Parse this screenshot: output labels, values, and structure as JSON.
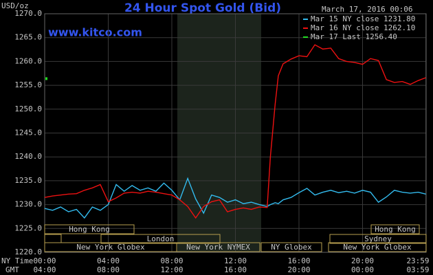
{
  "chart_data": {
    "type": "line",
    "title": "24 Hour Spot Gold (Bid)",
    "watermark": "www.kitco.com",
    "timestamp": "March 17, 2016 00:06",
    "y_label": "USD/oz",
    "x_row_labels": [
      "NY Time",
      "GMT"
    ],
    "x": [
      0,
      0.5,
      1,
      1.5,
      2,
      2.5,
      3,
      3.5,
      4,
      4.5,
      5,
      5.5,
      6,
      6.5,
      7,
      7.5,
      8,
      8.5,
      9,
      9.5,
      10,
      10.5,
      11,
      11.5,
      12,
      12.5,
      13,
      13.5,
      14,
      14.2,
      14.5,
      14.7,
      15,
      15.5,
      16,
      16.5,
      17,
      17.5,
      18,
      18.5,
      19,
      19.5,
      20,
      20.5,
      21,
      21.5,
      22,
      22.5,
      23,
      23.5,
      23.98
    ],
    "series": [
      {
        "name": "Mar 15 NY close 1231.80",
        "color": "#33bbee",
        "values": [
          1229.2,
          1228.8,
          1229.5,
          1228.5,
          1229,
          1227.2,
          1229.5,
          1228.8,
          1230,
          1234.2,
          1232.8,
          1234,
          1233,
          1233.5,
          1232.8,
          1234.5,
          1233,
          1231,
          1235.5,
          1231.2,
          1228.2,
          1232,
          1231.5,
          1230.5,
          1231,
          1230.2,
          1230.5,
          1230,
          1229.6,
          1230,
          1230.4,
          1230.2,
          1231,
          1231.5,
          1232.5,
          1233.4,
          1232,
          1232.6,
          1233,
          1232.5,
          1232.8,
          1232.4,
          1233,
          1232.6,
          1230.5,
          1231.6,
          1233,
          1232.6,
          1232.4,
          1232.6,
          1232.2
        ]
      },
      {
        "name": "Mar 16 NY close 1262.10",
        "color": "#ee1111",
        "values": [
          1231.5,
          1231.8,
          1232,
          1232.2,
          1232.3,
          1233,
          1233.5,
          1234.2,
          1230.6,
          1231.4,
          1232.4,
          1232.6,
          1232.4,
          1232.8,
          1232.6,
          1232.3,
          1232,
          1231,
          1229.6,
          1227.2,
          1229.6,
          1230.6,
          1231,
          1228.5,
          1229,
          1229.3,
          1229,
          1229.5,
          1229.4,
          1240,
          1251,
          1257,
          1259.5,
          1260.5,
          1261.2,
          1261,
          1263.5,
          1262.6,
          1262.8,
          1260.6,
          1260,
          1259.8,
          1259.4,
          1260.6,
          1260.2,
          1256.2,
          1255.6,
          1255.8,
          1255.2,
          1256,
          1256.6
        ]
      },
      {
        "name": "Mar 17 Last 1256.40",
        "color": "#22dd22",
        "x": [
          0
        ],
        "values": [
          1256.4
        ]
      }
    ],
    "xlim": [
      0,
      24
    ],
    "xticks": [
      {
        "value": 0,
        "label": "00:00"
      },
      {
        "value": 4,
        "label": "04:00"
      },
      {
        "value": 8,
        "label": "08:00"
      },
      {
        "value": 12,
        "label": "12:00"
      },
      {
        "value": 16,
        "label": "16:00"
      },
      {
        "value": 20,
        "label": "20:00"
      },
      {
        "value": 23.983,
        "label": "23:59"
      }
    ],
    "gmt_labels": [
      "04:00",
      "08:00",
      "12:00",
      "16:00",
      "20:00",
      "00:00",
      "03:59"
    ],
    "ylim": [
      1220,
      1270
    ],
    "yticks": [
      {
        "value": 1220,
        "label": "1220.0"
      },
      {
        "value": 1225,
        "label": "1225.0"
      },
      {
        "value": 1230,
        "label": "1230.0"
      },
      {
        "value": 1235,
        "label": "1235.0"
      },
      {
        "value": 1240,
        "label": "1240.0"
      },
      {
        "value": 1245,
        "label": "1245.0"
      },
      {
        "value": 1250,
        "label": "1250.0"
      },
      {
        "value": 1255,
        "label": "1255.0"
      },
      {
        "value": 1260,
        "label": "1260.0"
      },
      {
        "value": 1265,
        "label": "1265.0"
      },
      {
        "value": 1270,
        "label": "1270.0"
      }
    ],
    "grid": true,
    "sessions": [
      "Hong Kong",
      "Hong Kong",
      "London",
      "Sydney",
      "New York Globex",
      "New York NYMEX",
      "NY Globex",
      "New York Globex"
    ]
  }
}
